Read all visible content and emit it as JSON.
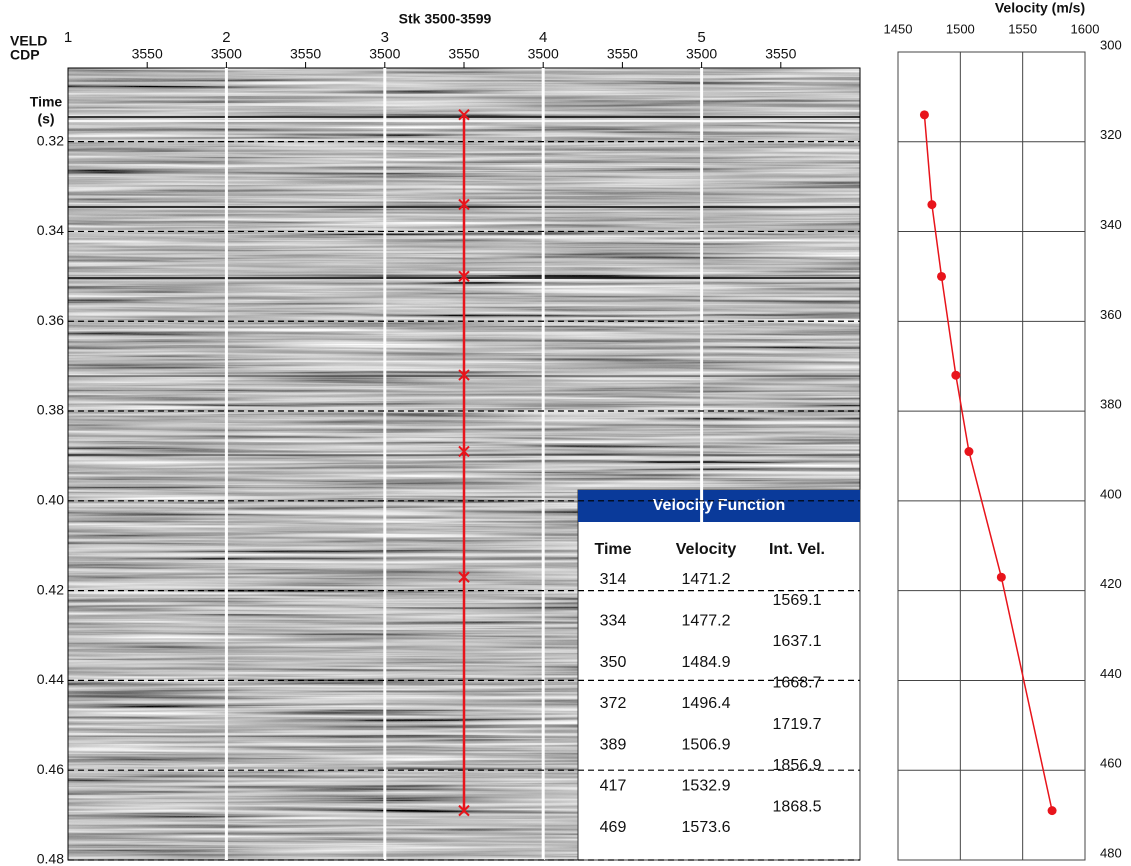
{
  "chart_data": [
    {
      "type": "seismic",
      "title": "Stk 3500-3599",
      "row_labels": [
        "VELD",
        "CDP"
      ],
      "ylabel": [
        "Time",
        "(s)"
      ],
      "panels": [
        "1",
        "2",
        "3",
        "4",
        "5"
      ],
      "cdp_labels": [
        "3550",
        "3500",
        "3550",
        "3500",
        "3550",
        "3500",
        "3550",
        "3500",
        "3550"
      ],
      "ylim": [
        0.3036,
        0.48
      ],
      "yticks": [
        0.32,
        0.34,
        0.36,
        0.38,
        {
          "value": 0.4,
          "label": "0.40"
        },
        0.42,
        0.44,
        0.46,
        0.48
      ],
      "picks": [
        0.314,
        0.334,
        0.35,
        0.372,
        0.389,
        0.417,
        0.469
      ],
      "pick_color": "#e8141b",
      "pick_panel": 2
    },
    {
      "type": "line",
      "title": "Velocity (m/s)",
      "x": [
        1471.2,
        1477.2,
        1484.9,
        1496.4,
        1506.9,
        1532.9,
        1573.6
      ],
      "values": [
        314,
        334,
        350,
        372,
        389,
        417,
        469
      ],
      "color": "#e8141b",
      "xlim": [
        1450,
        1600
      ],
      "xticks": [
        1450,
        1500,
        1550,
        1600
      ],
      "ylim": [
        300,
        480
      ],
      "yticks": [
        300,
        320,
        340,
        360,
        380,
        400,
        420,
        440,
        460,
        480
      ],
      "grid": true
    }
  ],
  "table": {
    "title": "Velocity Function",
    "columns": [
      "Time",
      "Velocity",
      "Int. Vel."
    ],
    "rows": [
      [
        "314",
        "1471.2"
      ],
      [
        "334",
        "1477.2"
      ],
      [
        "350",
        "1484.9"
      ],
      [
        "372",
        "1496.4"
      ],
      [
        "389",
        "1506.9"
      ],
      [
        "417",
        "1532.9"
      ],
      [
        "469",
        "1573.6"
      ]
    ],
    "int_vel": [
      "1569.1",
      "1637.1",
      "1668.7",
      "1719.7",
      "1856.9",
      "1868.5"
    ]
  }
}
